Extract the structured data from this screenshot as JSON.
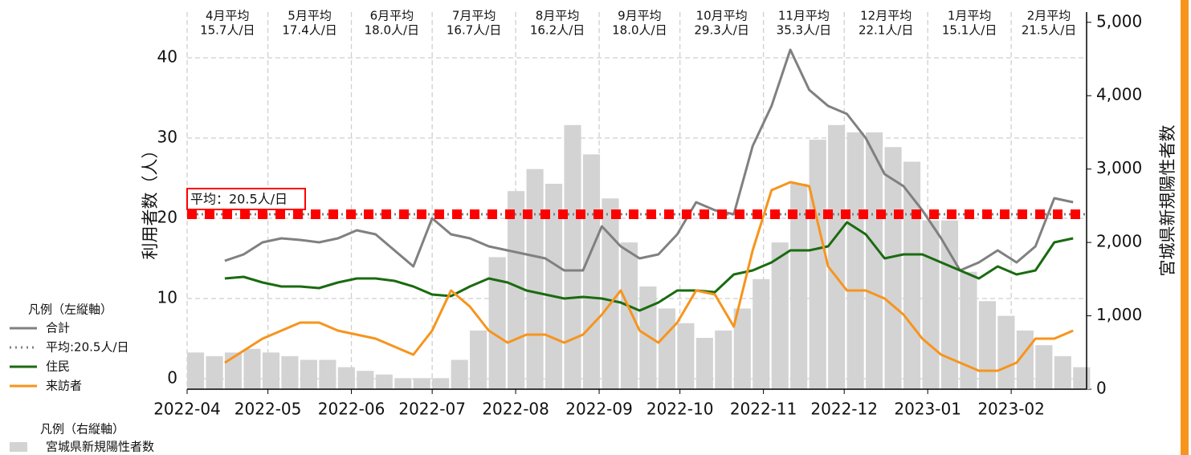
{
  "chart_data": {
    "type": "line",
    "x": [
      "2022-04-01",
      "2022-04-08",
      "2022-04-15",
      "2022-04-22",
      "2022-04-29",
      "2022-05-06",
      "2022-05-13",
      "2022-05-20",
      "2022-05-27",
      "2022-06-03",
      "2022-06-10",
      "2022-06-17",
      "2022-06-24",
      "2022-07-01",
      "2022-07-08",
      "2022-07-15",
      "2022-07-22",
      "2022-07-29",
      "2022-08-05",
      "2022-08-12",
      "2022-08-19",
      "2022-08-26",
      "2022-09-02",
      "2022-09-09",
      "2022-09-16",
      "2022-09-23",
      "2022-09-30",
      "2022-10-07",
      "2022-10-14",
      "2022-10-21",
      "2022-10-28",
      "2022-11-04",
      "2022-11-11",
      "2022-11-18",
      "2022-11-25",
      "2022-12-02",
      "2022-12-09",
      "2022-12-16",
      "2022-12-23",
      "2022-12-30",
      "2023-01-06",
      "2023-01-13",
      "2023-01-20",
      "2023-01-27",
      "2023-02-03",
      "2023-02-10",
      "2023-02-17",
      "2023-02-24"
    ],
    "xlim": [
      "2022-04",
      "2023-03"
    ],
    "xticks": [
      "2022-04",
      "2022-05",
      "2022-06",
      "2022-07",
      "2022-08",
      "2022-09",
      "2022-10",
      "2022-11",
      "2022-12",
      "2023-01",
      "2023-02"
    ],
    "ylim": [
      -1.3,
      45.7
    ],
    "yticks": [
      0,
      10,
      20,
      30,
      40
    ],
    "ylabel": "利用者数（人）",
    "y2lim": [
      0,
      5140
    ],
    "y2ticks": [
      0,
      {
        "value": 1000,
        "label": "1,000"
      },
      {
        "value": 2000,
        "label": "2,000"
      },
      {
        "value": 3000,
        "label": "3,000"
      },
      {
        "value": 4000,
        "label": "4,000"
      },
      {
        "value": 5000,
        "label": "5,000"
      }
    ],
    "y2label": "宮城県新規陽性者数",
    "grid": true,
    "series": [
      {
        "name": "合計",
        "color": "#808080",
        "values": [
          null,
          null,
          14.7,
          15.5,
          17,
          17.5,
          17.3,
          17,
          17.5,
          18.5,
          18,
          16,
          14,
          20,
          18,
          17.5,
          16.5,
          16,
          15.5,
          15,
          13.5,
          13.5,
          19,
          16.5,
          15,
          15.5,
          18,
          22,
          21,
          20.5,
          29,
          34,
          41,
          36,
          34,
          33,
          30,
          25.5,
          24,
          21,
          17.5,
          13.5,
          14.5,
          16,
          14.5,
          16.5,
          22.5,
          22
        ]
      },
      {
        "name": "住民",
        "color": "#1a6b10",
        "values": [
          null,
          null,
          12.5,
          12.7,
          12,
          11.5,
          11.5,
          11.3,
          12,
          12.5,
          12.5,
          12.2,
          11.5,
          10.5,
          10.3,
          11.5,
          12.5,
          12,
          11,
          10.5,
          10,
          10.2,
          10,
          9.5,
          8.5,
          9.5,
          11,
          11,
          10.8,
          13,
          13.5,
          14.5,
          16,
          16,
          16.5,
          19.5,
          18,
          15,
          15.5,
          15.5,
          14.5,
          13.5,
          12.5,
          14,
          13,
          13.5,
          17,
          17.5
        ]
      },
      {
        "name": "来訪者",
        "color": "#f7941d",
        "values": [
          null,
          null,
          2,
          3.5,
          5,
          6,
          7,
          7,
          6,
          5.5,
          5,
          4,
          3,
          6,
          11,
          9,
          6,
          4.5,
          5.5,
          5.5,
          4.5,
          5.5,
          8,
          11,
          6,
          4.5,
          7,
          11,
          10.5,
          6.5,
          16,
          23.5,
          24.5,
          24,
          14,
          11,
          11,
          10,
          8,
          5,
          3,
          2,
          1,
          1,
          2,
          5,
          5,
          6
        ]
      },
      {
        "name": "宮城県新規陽性者数",
        "type": "bar",
        "axis": "y2",
        "color": "#d3d3d3",
        "values": [
          500,
          450,
          500,
          550,
          500,
          450,
          400,
          400,
          300,
          250,
          200,
          150,
          150,
          150,
          400,
          800,
          1800,
          2700,
          3000,
          2800,
          3600,
          3200,
          2600,
          2000,
          1400,
          1100,
          900,
          700,
          800,
          1100,
          1500,
          2000,
          2800,
          3400,
          3600,
          3500,
          3500,
          3300,
          3100,
          2300,
          2300,
          1600,
          1200,
          1000,
          800,
          600,
          450,
          300
        ]
      }
    ],
    "average": {
      "value": 20.5,
      "label": "平均：20.5人/日",
      "legend": "平均:20.5人/日",
      "color": "#ff0000",
      "legend_color": "#808080"
    },
    "monthly_averages": [
      {
        "month": "4月平均",
        "value": "15.7人/日"
      },
      {
        "month": "5月平均",
        "value": "17.4人/日"
      },
      {
        "month": "6月平均",
        "value": "18.0人/日"
      },
      {
        "month": "7月平均",
        "value": "16.7人/日"
      },
      {
        "month": "8月平均",
        "value": "16.2人/日"
      },
      {
        "month": "9月平均",
        "value": "18.0人/日"
      },
      {
        "month": "10月平均",
        "value": "29.3人/日"
      },
      {
        "month": "11月平均",
        "value": "35.3人/日"
      },
      {
        "month": "12月平均",
        "value": "22.1人/日"
      },
      {
        "month": "1月平均",
        "value": "15.1人/日"
      },
      {
        "month": "2月平均",
        "value": "21.5人/日"
      }
    ],
    "legend_left_title": "凡例（左縦軸）",
    "legend_right_title": "凡例（右縦軸）"
  }
}
